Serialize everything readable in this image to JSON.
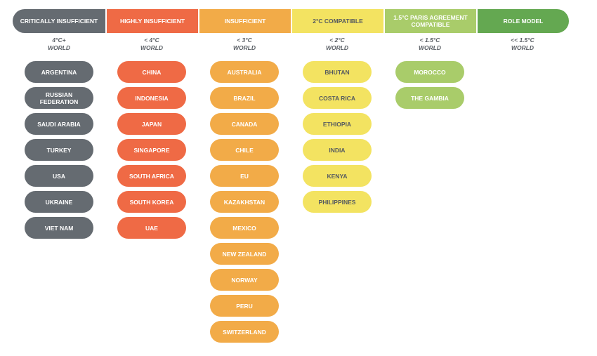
{
  "colors": {
    "critically_insufficient": "#656b71",
    "highly_insufficient": "#ef6a45",
    "insufficient": "#f2ab48",
    "compatible_2c": "#f3e361",
    "paris_compatible": "#a9cc6a",
    "role_model": "#64a851",
    "text_light": "#ffffff",
    "text_dark": "#555a60"
  },
  "columns": [
    {
      "header": "CRITICALLY INSUFFICIENT",
      "range": "4°C+",
      "scope": "WORLD",
      "countries": [
        "ARGENTINA",
        "RUSSIAN FEDERATION",
        "SAUDI ARABIA",
        "TURKEY",
        "USA",
        "UKRAINE",
        "VIET NAM"
      ]
    },
    {
      "header": "HIGHLY INSUFFICIENT",
      "range": "< 4°C",
      "scope": "WORLD",
      "countries": [
        "CHINA",
        "INDONESIA",
        "JAPAN",
        "SINGAPORE",
        "SOUTH AFRICA",
        "SOUTH KOREA",
        "UAE"
      ]
    },
    {
      "header": "INSUFFICIENT",
      "range": "< 3°C",
      "scope": "WORLD",
      "countries": [
        "AUSTRALIA",
        "BRAZIL",
        "CANADA",
        "CHILE",
        "EU",
        "KAZAKHSTAN",
        "MEXICO",
        "NEW ZEALAND",
        "NORWAY",
        "PERU",
        "SWITZERLAND"
      ]
    },
    {
      "header": "2°C COMPATIBLE",
      "range": "< 2°C",
      "scope": "WORLD",
      "countries": [
        "BHUTAN",
        "COSTA RICA",
        "ETHIOPIA",
        "INDIA",
        "KENYA",
        "PHILIPPINES"
      ]
    },
    {
      "header": "1.5°C PARIS AGREEMENT COMPATIBLE",
      "range": "< 1.5°C",
      "scope": "WORLD",
      "countries": [
        "MOROCCO",
        "THE GAMBIA"
      ]
    },
    {
      "header": "ROLE MODEL",
      "range": "<< 1.5°C",
      "scope": "WORLD",
      "countries": []
    }
  ]
}
